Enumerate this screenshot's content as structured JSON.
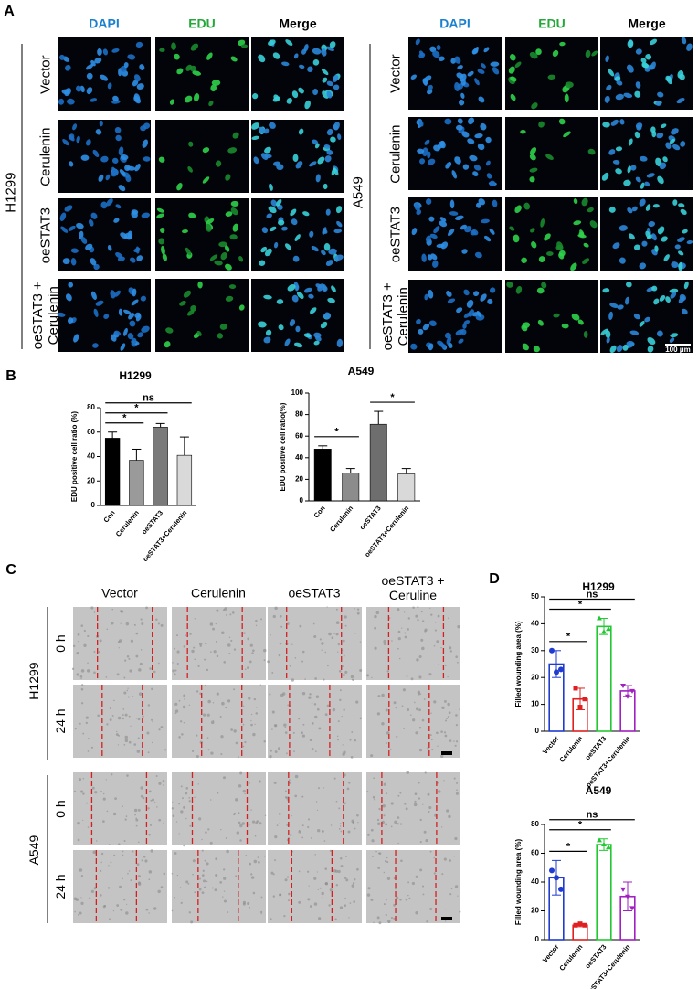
{
  "panels": {
    "A": {
      "label": "A",
      "columns": [
        "DAPI",
        "EDU",
        "Merge"
      ],
      "rows": [
        "Vector",
        "Cerulenin",
        "oeSTAT3",
        "oeSTAT3 + Cerulenin"
      ],
      "groups": [
        "H1299",
        "A549"
      ],
      "scale_bar": "100 μm"
    },
    "B": {
      "label": "B"
    },
    "C": {
      "label": "C",
      "columns": [
        "Vector",
        "Cerulenin",
        "oeSTAT3",
        "oeSTAT3 + Ceruline"
      ],
      "rows": [
        "0 h",
        "24 h"
      ],
      "groups": [
        "H1299",
        "A549"
      ]
    },
    "D": {
      "label": "D"
    }
  },
  "chart_data": [
    {
      "type": "bar",
      "title": "H1299",
      "ylabel": "EDU positive cell ratio (%)",
      "categories": [
        "Con",
        "Cerulenin",
        "oeSTAT3",
        "oeSTAT3+Cerulenin"
      ],
      "values": [
        55,
        37,
        64,
        41
      ],
      "errors": [
        5,
        9,
        3,
        15
      ],
      "colors": [
        "#000000",
        "#9a9a9a",
        "#7a7a7a",
        "#d9d9d9"
      ],
      "ylim": [
        0,
        80
      ],
      "yticks": [
        0,
        20,
        40,
        60,
        80
      ],
      "comparisons": [
        {
          "from": 0,
          "to": 1,
          "label": "*"
        },
        {
          "from": 0,
          "to": 2,
          "label": "*"
        },
        {
          "from": 0,
          "to": 3,
          "label": "ns"
        }
      ]
    },
    {
      "type": "bar",
      "title": "A549",
      "ylabel": "EDU positive cell ratio(%)",
      "categories": [
        "Con",
        "Cerulenin",
        "oeSTAT3",
        "oeSTAT3+Cerulenin"
      ],
      "values": [
        48,
        26,
        71,
        25
      ],
      "errors": [
        3,
        4,
        12,
        5
      ],
      "colors": [
        "#000000",
        "#8c8c8c",
        "#6e6e6e",
        "#d9d9d9"
      ],
      "ylim": [
        0,
        100
      ],
      "yticks": [
        0,
        20,
        40,
        60,
        80,
        100
      ],
      "comparisons": [
        {
          "from": 0,
          "to": 1,
          "label": "*"
        },
        {
          "from": 2,
          "to": 3,
          "label": "*"
        }
      ]
    },
    {
      "type": "bar",
      "title": "H1299",
      "ylabel": "Filled wounding area (%)",
      "hollow": true,
      "categories": [
        "Vector",
        "Cerulenin",
        "oeSTAT3",
        "oeSTAT3+Cerulenin"
      ],
      "values": [
        25,
        12,
        39,
        15
      ],
      "errors": [
        5,
        4,
        3,
        2
      ],
      "points": [
        [
          30,
          22,
          23
        ],
        [
          16,
          9,
          12
        ],
        [
          42,
          37,
          38
        ],
        [
          17,
          13,
          15
        ]
      ],
      "colors": [
        "#1f3bd0",
        "#e02020",
        "#22c832",
        "#a020c0"
      ],
      "ylim": [
        0,
        50
      ],
      "yticks": [
        0,
        10,
        20,
        30,
        40,
        50
      ],
      "comparisons": [
        {
          "from": 0,
          "to": 1,
          "label": "*"
        },
        {
          "from": 0,
          "to": 2,
          "label": "*"
        },
        {
          "from": 0,
          "to": 3,
          "label": "ns"
        }
      ]
    },
    {
      "type": "bar",
      "title": "A549",
      "ylabel": "Filled wounding area (%)",
      "hollow": true,
      "categories": [
        "Vector",
        "Cerulenin",
        "oeSTAT3",
        "oeSTAT3+Cerulenin"
      ],
      "values": [
        43,
        10,
        66,
        30
      ],
      "errors": [
        12,
        1,
        4,
        10
      ],
      "points": [
        [
          48,
          43,
          35
        ],
        [
          10,
          11,
          10
        ],
        [
          69,
          66,
          64
        ],
        [
          35,
          30,
          22
        ]
      ],
      "colors": [
        "#1f3bd0",
        "#e02020",
        "#22c832",
        "#a020c0"
      ],
      "ylim": [
        0,
        80
      ],
      "yticks": [
        0,
        20,
        40,
        60,
        80
      ],
      "comparisons": [
        {
          "from": 0,
          "to": 1,
          "label": "*"
        },
        {
          "from": 0,
          "to": 2,
          "label": "*"
        },
        {
          "from": 0,
          "to": 3,
          "label": "ns"
        }
      ]
    }
  ]
}
